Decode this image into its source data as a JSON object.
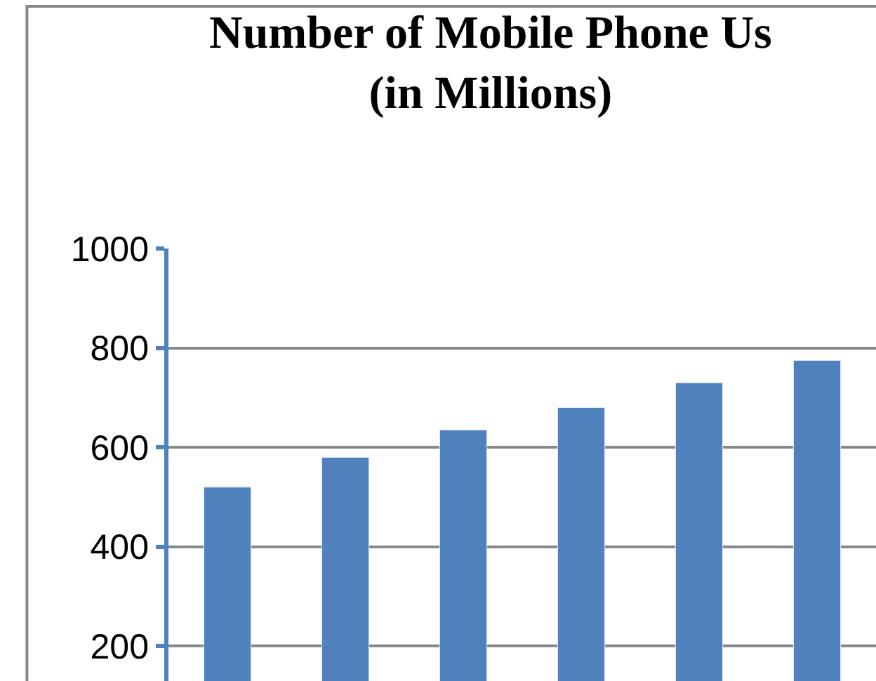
{
  "chart_data": {
    "type": "bar",
    "title": "Number of Mobile Phone Us",
    "subtitle": "(in Millions)",
    "categories": [
      null,
      null,
      null,
      null,
      null,
      null
    ],
    "values": [
      520,
      580,
      635,
      680,
      730,
      775
    ],
    "color": "#4f81bd",
    "ylim": [
      130,
      1000
    ],
    "yticks": [
      200,
      400,
      600,
      800,
      1000
    ],
    "grid": "y",
    "tick_labels": "y"
  }
}
